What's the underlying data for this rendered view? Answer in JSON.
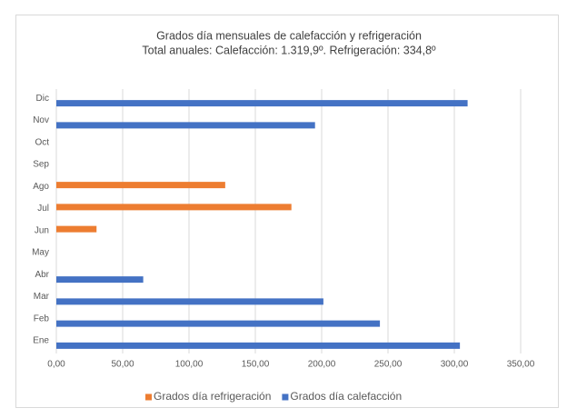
{
  "chart_data": {
    "type": "bar",
    "orientation": "horizontal",
    "title": "Grados día mensuales de calefacción y refrigeración",
    "subtitle": "Total anuales: Calefacción: 1.319,9º. Refrigeración: 334,8º",
    "categories": [
      "Ene",
      "Feb",
      "Mar",
      "Abr",
      "May",
      "Jun",
      "Jul",
      "Ago",
      "Sep",
      "Oct",
      "Nov",
      "Dic"
    ],
    "series": [
      {
        "name": "Grados día refrigeración",
        "color": "#ed7d31",
        "values": [
          0,
          0,
          0,
          0,
          0,
          30.3,
          177.2,
          127.3,
          0,
          0,
          0,
          0
        ]
      },
      {
        "name": "Grados día calefacción",
        "color": "#4472c4",
        "values": [
          304.2,
          243.9,
          201.3,
          65.5,
          0,
          0,
          0,
          0,
          0,
          0,
          195.0,
          310.0
        ]
      }
    ],
    "xlim": [
      0,
      350
    ],
    "xticks": [
      {
        "value": 0,
        "label": "0,00"
      },
      {
        "value": 50,
        "label": "50,00"
      },
      {
        "value": 100,
        "label": "100,00"
      },
      {
        "value": 150,
        "label": "150,00"
      },
      {
        "value": 200,
        "label": "200,00"
      },
      {
        "value": 250,
        "label": "250,00"
      },
      {
        "value": 300,
        "label": "300,00"
      },
      {
        "value": 350,
        "label": "350,00"
      }
    ],
    "grid": true,
    "legend": "bottom"
  }
}
